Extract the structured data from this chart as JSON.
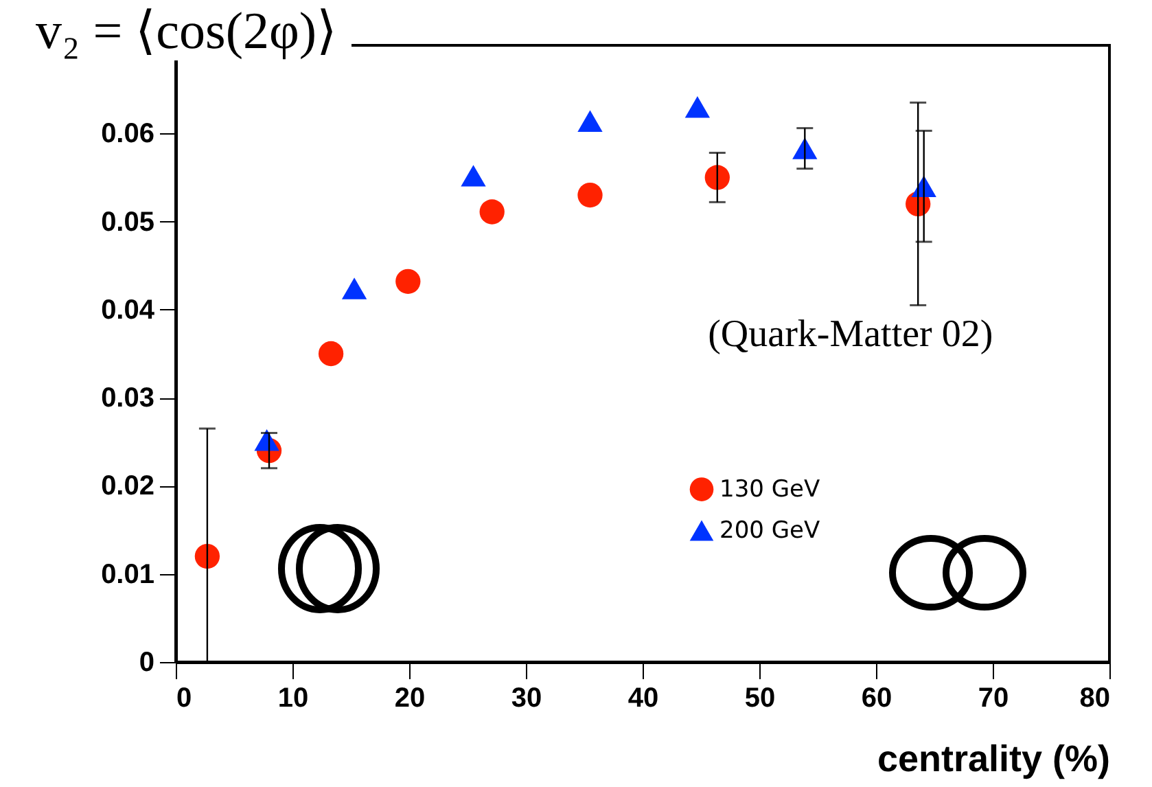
{
  "chart_data": {
    "type": "scatter",
    "title": "v₂ = ⟨cos(2φ)⟩",
    "xlabel": "centrality (%)",
    "annotations": [
      "(Quark-Matter 02)"
    ],
    "xlim": [
      0,
      80
    ],
    "xticks": [
      0,
      10,
      20,
      30,
      40,
      50,
      60,
      70,
      80
    ],
    "ylim": [
      0,
      0.07
    ],
    "yticks": [
      0,
      0.01,
      0.02,
      0.03,
      0.04,
      0.05,
      0.06
    ],
    "legend": "right",
    "series": [
      {
        "name": "130 GeV",
        "color": "#ff2200",
        "marker": "circle",
        "x": [
          2.7,
          8.0,
          13.3,
          19.9,
          27.1,
          35.5,
          46.4,
          63.6
        ],
        "values": [
          0.012,
          0.024,
          0.035,
          0.0432,
          0.0511,
          0.053,
          0.055,
          0.052
        ],
        "errors": [
          [
            0,
            0.0265
          ],
          0.002,
          null,
          null,
          null,
          null,
          0.0028,
          0.0115
        ]
      },
      {
        "name": "200 GeV",
        "color": "#0033ff",
        "marker": "triangle",
        "x": [
          7.8,
          15.3,
          25.5,
          35.5,
          44.7,
          53.9,
          64.1
        ],
        "values": [
          0.0252,
          0.0424,
          0.0552,
          0.0614,
          0.063,
          0.0583,
          0.054
        ],
        "errors": [
          null,
          null,
          null,
          null,
          null,
          0.0023,
          0.0063
        ]
      }
    ]
  }
}
